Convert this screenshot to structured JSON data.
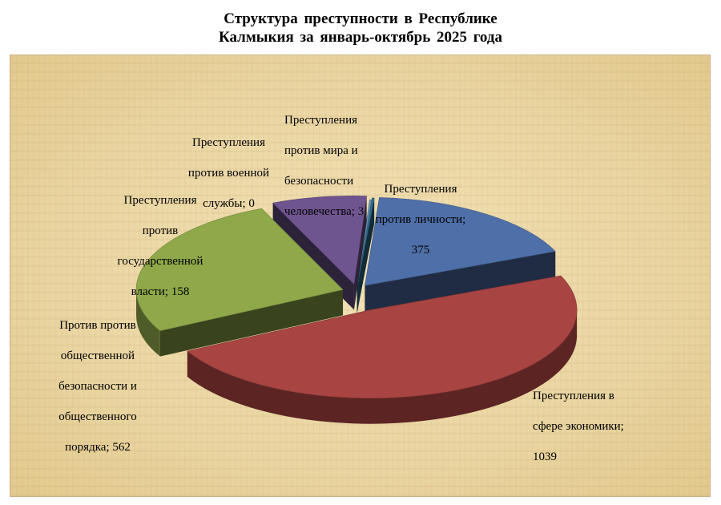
{
  "chart_data": {
    "type": "pie",
    "title_lines": [
      "Структура  преступности  в  Республике",
      "Калмыкия   за январь-октябрь  2025 года"
    ],
    "slices": [
      {
        "label_lines": [
          "Преступления",
          "против личности;",
          "375"
        ],
        "value": 375,
        "color": "#4f6fa8"
      },
      {
        "label_lines": [
          "Преступления в",
          "сфере экономики;",
          "1039"
        ],
        "value": 1039,
        "color": "#a84442"
      },
      {
        "label_lines": [
          "Против против",
          "общественной",
          "безопасности и",
          "общественного",
          "порядка; 562"
        ],
        "value": 562,
        "color": "#8ea84a"
      },
      {
        "label_lines": [
          "Преступления",
          "против",
          "государственной",
          "власти; 158"
        ],
        "value": 158,
        "color": "#6f558f"
      },
      {
        "label_lines": [
          "Преступления",
          "против военной",
          "службы; 0"
        ],
        "value": 0,
        "color": "#6b8fb0"
      },
      {
        "label_lines": [
          "Преступления",
          "против мира и",
          "безопасности",
          "человечества; 3"
        ],
        "value": 3,
        "color": "#2f6f8f"
      }
    ],
    "grid": false,
    "legend": "none"
  }
}
